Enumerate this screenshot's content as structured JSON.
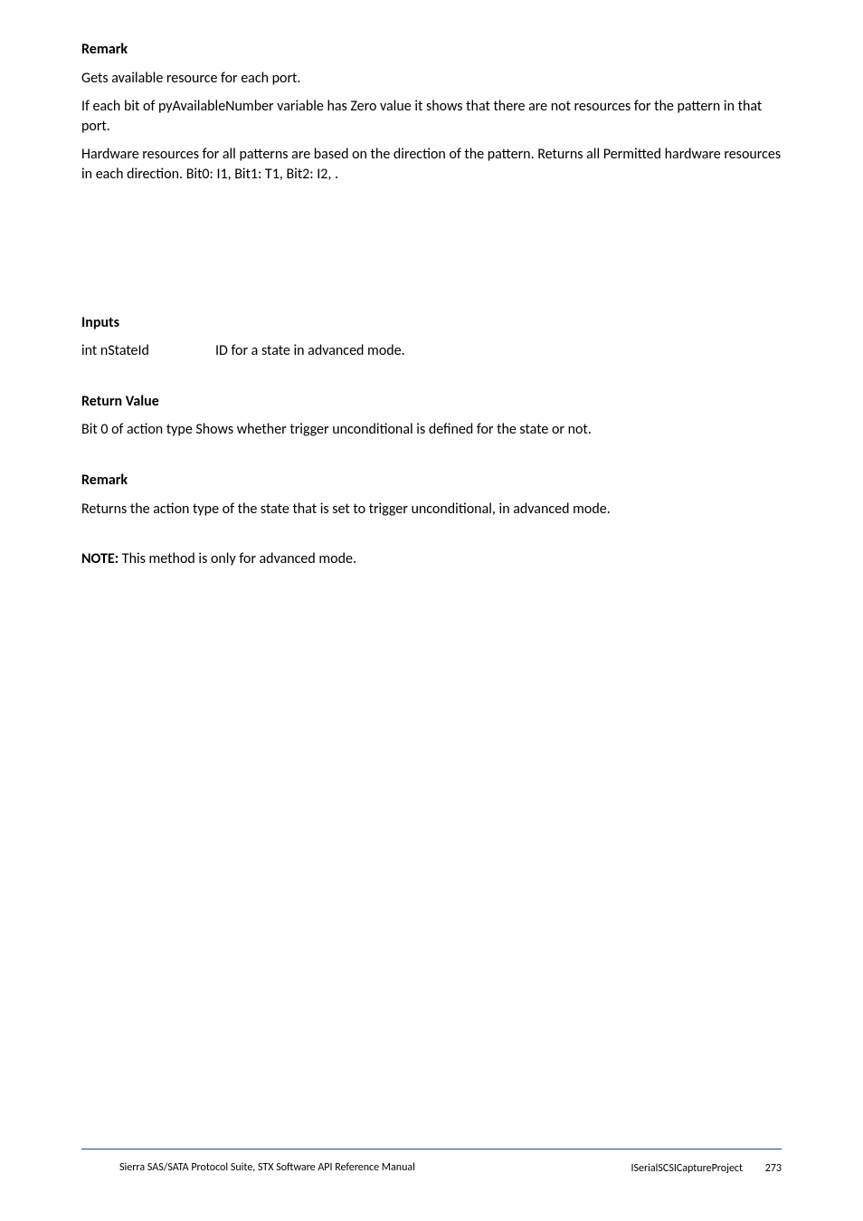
{
  "sections": {
    "remark1": {
      "heading": "Remark",
      "p1": "Gets available resource for each port.",
      "p2": "If each bit of pyAvailableNumber variable has Zero value it shows that there are not resources for the pattern in that port.",
      "p3": "Hardware resources for all patterns are based on the direction of the pattern. Returns all Permitted hardware resources in each direction. Bit0: I1, Bit1: T1, Bit2: I2, ."
    },
    "inputs": {
      "heading": "Inputs",
      "row": {
        "name": "int nStateId",
        "desc": "ID for a state in advanced mode."
      }
    },
    "return_value": {
      "heading": "Return Value",
      "p": "Bit 0 of action type Shows whether trigger unconditional is defined for the state or not."
    },
    "remark2": {
      "heading": "Remark",
      "p": "Returns the action type of the state that is set to trigger unconditional, in advanced mode."
    },
    "note": {
      "label": "NOTE:",
      "text": " This method is only for advanced mode."
    }
  },
  "footer": {
    "left": "Sierra SAS/SATA Protocol Suite, STX Software API Reference Manual",
    "right_label": "ISerialSCSICaptureProject",
    "page": "273"
  },
  "style": {
    "rule_color": "#1f4e79",
    "text_color": "#000000",
    "bg_color": "#ffffff"
  }
}
